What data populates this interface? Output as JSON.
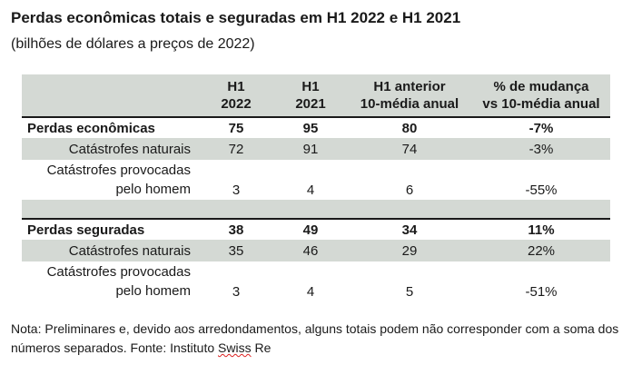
{
  "title": "Perdas econômicas totais e seguradas em H1 2022 e H1 2021",
  "subtitle": "(bilhões de dólares a preços de 2022)",
  "table": {
    "headers": [
      "H1\n2022",
      "H1\n2021",
      "H1 anterior\n10-média anual",
      "% de mudança\nvs 10-média anual"
    ],
    "economic": {
      "total": {
        "label": "Perdas econômicas",
        "v1": "75",
        "v2": "95",
        "v3": "80",
        "v4": "-7%"
      },
      "natural": {
        "label": "Catástrofes naturais",
        "v1": "72",
        "v2": "91",
        "v3": "74",
        "v4": "-3%"
      },
      "manmade": {
        "label": "Catástrofes provocadas\npelo homem",
        "v1": "3",
        "v2": "4",
        "v3": "6",
        "v4": "-55%"
      }
    },
    "insured": {
      "total": {
        "label": "Perdas seguradas",
        "v1": "38",
        "v2": "49",
        "v3": "34",
        "v4": "11%"
      },
      "natural": {
        "label": "Catástrofes naturais",
        "v1": "35",
        "v2": "46",
        "v3": "29",
        "v4": "22%"
      },
      "manmade": {
        "label": "Catástrofes provocadas\npelo homem",
        "v1": "3",
        "v2": "4",
        "v3": "5",
        "v4": "-51%"
      }
    }
  },
  "note": {
    "text": "Nota: Preliminares e, devido aos arredondamentos, alguns totais podem não corresponder com a soma dos números separados. Fonte: Instituto ",
    "source_word": "Swiss",
    "source_tail": " Re"
  }
}
